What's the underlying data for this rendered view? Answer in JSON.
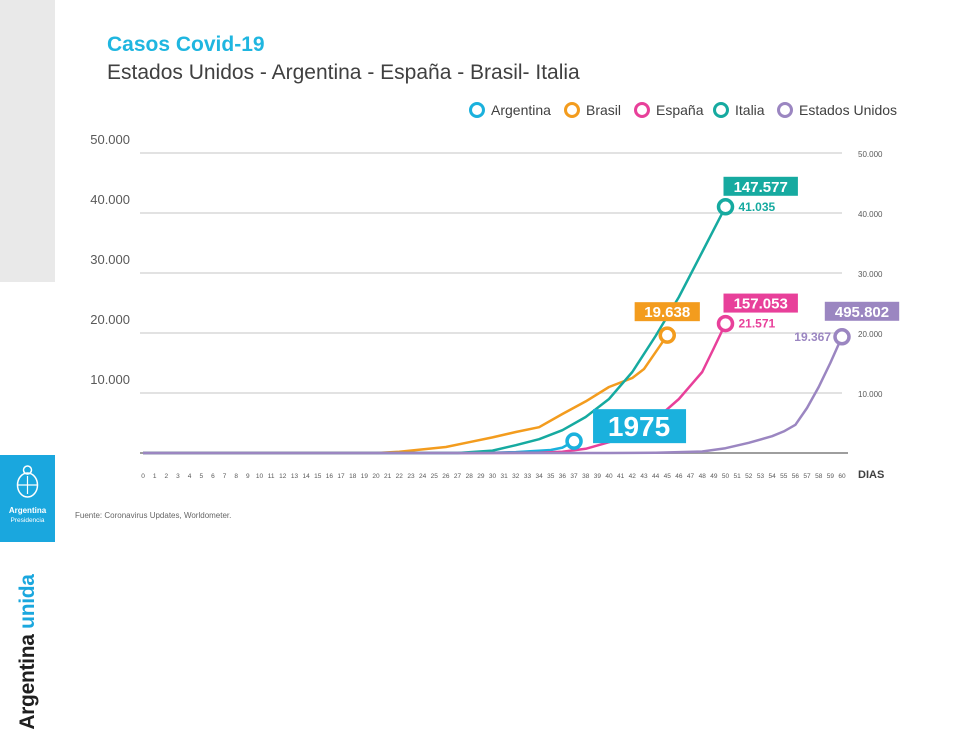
{
  "sidebar": {
    "brand_word1": "Argentina",
    "brand_word2": "unida",
    "emblem_title": "Argentina",
    "emblem_subtitle": "Presidencia"
  },
  "header": {
    "title": "Casos Covid-19",
    "subtitle": "Estados Unidos - Argentina - España - Brasil- Italia"
  },
  "footer": {
    "source": "Fuente: Coronavirus Updates, Worldometer."
  },
  "chart_data": {
    "type": "line",
    "xlabel": "DIAS",
    "xlim": [
      0,
      60
    ],
    "ylim": [
      0,
      50000
    ],
    "y_ticks_left": [
      "10.000",
      "20.000",
      "30.000",
      "40.000",
      "50.000"
    ],
    "y_ticks_right": [
      "10.000",
      "20.000",
      "30.000",
      "40.000",
      "50.000"
    ],
    "legend_position": "top-right",
    "grid": true,
    "series": [
      {
        "name": "Argentina",
        "color": "#1ab1dd",
        "end_label": "1975",
        "points": [
          [
            0,
            0
          ],
          [
            20,
            0
          ],
          [
            27,
            0
          ],
          [
            30,
            50
          ],
          [
            32,
            150
          ],
          [
            35,
            500
          ],
          [
            36,
            900
          ],
          [
            37,
            1975
          ]
        ]
      },
      {
        "name": "Brasil",
        "color": "#f39c1e",
        "end_label": "19.638",
        "end_box": "19.638",
        "points": [
          [
            0,
            0
          ],
          [
            20,
            0
          ],
          [
            22,
            200
          ],
          [
            24,
            600
          ],
          [
            26,
            1000
          ],
          [
            28,
            1800
          ],
          [
            30,
            2600
          ],
          [
            32,
            3500
          ],
          [
            34,
            4300
          ],
          [
            36,
            6500
          ],
          [
            38,
            8600
          ],
          [
            40,
            11000
          ],
          [
            42,
            12500
          ],
          [
            43,
            14000
          ],
          [
            44,
            16800
          ],
          [
            45,
            19638
          ]
        ]
      },
      {
        "name": "España",
        "color": "#e8409a",
        "end_label": "21.571",
        "end_box": "157.053",
        "points": [
          [
            0,
            0
          ],
          [
            30,
            0
          ],
          [
            34,
            50
          ],
          [
            36,
            200
          ],
          [
            38,
            700
          ],
          [
            40,
            1800
          ],
          [
            42,
            3200
          ],
          [
            44,
            5600
          ],
          [
            46,
            9000
          ],
          [
            48,
            13500
          ],
          [
            49,
            17500
          ],
          [
            50,
            21571
          ]
        ]
      },
      {
        "name": "Italia",
        "color": "#16aaa0",
        "end_label": "41.035",
        "end_box": "147.577",
        "points": [
          [
            0,
            0
          ],
          [
            27,
            0
          ],
          [
            30,
            400
          ],
          [
            32,
            1300
          ],
          [
            34,
            2300
          ],
          [
            36,
            3800
          ],
          [
            38,
            6000
          ],
          [
            40,
            9000
          ],
          [
            42,
            13500
          ],
          [
            44,
            19500
          ],
          [
            46,
            26000
          ],
          [
            48,
            33500
          ],
          [
            50,
            41035
          ]
        ]
      },
      {
        "name": "Estados Unidos",
        "color": "#9b86c1",
        "end_label": "19.367",
        "end_box": "495.802",
        "points": [
          [
            0,
            0
          ],
          [
            40,
            0
          ],
          [
            44,
            50
          ],
          [
            48,
            250
          ],
          [
            50,
            800
          ],
          [
            52,
            1700
          ],
          [
            54,
            2800
          ],
          [
            55,
            3600
          ],
          [
            56,
            4700
          ],
          [
            57,
            7500
          ],
          [
            58,
            11000
          ],
          [
            59,
            15000
          ],
          [
            60,
            19367
          ]
        ]
      }
    ]
  }
}
